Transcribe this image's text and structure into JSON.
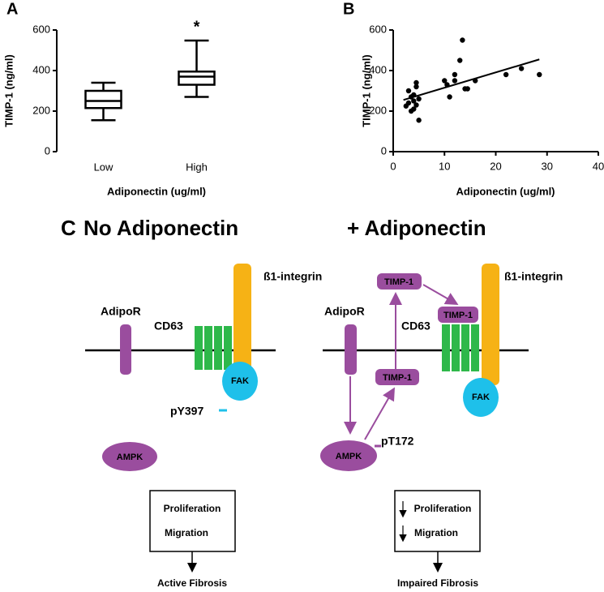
{
  "chart_data": [
    {
      "type": "box",
      "panel_label": "A",
      "ylabel": "TIMP-1 (ng/ml)",
      "xlabel": "Adiponectin (ug/ml)",
      "categories": [
        "Low",
        "High"
      ],
      "min": [
        155,
        270
      ],
      "q1": [
        215,
        330
      ],
      "median": [
        250,
        370
      ],
      "q3": [
        300,
        395
      ],
      "max": [
        340,
        548
      ],
      "significance": [
        null,
        "*"
      ],
      "color": "#000000",
      "ylim": [
        0,
        600
      ],
      "yticks": [
        0,
        200,
        400,
        600
      ]
    },
    {
      "type": "scatter",
      "panel_label": "B",
      "ylabel": "TIMP-1 (ng/ml)",
      "xlabel": "Adiponectin (ug/ml)",
      "x": [
        2.5,
        3,
        3.5,
        3.5,
        4,
        4,
        4.5,
        4.5,
        4.5,
        5,
        5,
        4,
        3,
        10,
        10.5,
        11,
        12,
        12,
        13,
        13.5,
        14,
        14.5,
        16,
        22,
        25,
        28.5
      ],
      "y": [
        225,
        300,
        200,
        270,
        250,
        210,
        340,
        320,
        230,
        260,
        155,
        280,
        240,
        350,
        330,
        270,
        380,
        350,
        450,
        550,
        310,
        310,
        350,
        380,
        410,
        380
      ],
      "trendline": {
        "x": [
          2,
          28.5
        ],
        "y": [
          255,
          455
        ]
      },
      "color": "#000000",
      "xlim": [
        0,
        40
      ],
      "xticks": [
        0,
        10,
        20,
        30,
        40
      ],
      "ylim": [
        0,
        600
      ],
      "yticks": [
        0,
        200,
        400,
        600
      ]
    }
  ],
  "diagram": {
    "panel_label": "C",
    "left": {
      "title": "No Adiponectin",
      "receptor": "AdipoR",
      "tetraspanin": "CD63",
      "integrin": "ß1-integrin",
      "fak": "FAK",
      "phospho": "pY397",
      "kinase": "AMPK",
      "outcomes": [
        "Proliferation",
        "Migration"
      ],
      "result": "Active Fibrosis"
    },
    "right": {
      "title": "+ Adiponectin",
      "receptor": "AdipoR",
      "tetraspanin": "CD63",
      "integrin": "ß1-integrin",
      "fak": "FAK",
      "phospho": "pT172",
      "kinase": "AMPK",
      "timp": [
        "TIMP-1",
        "TIMP-1",
        "TIMP-1"
      ],
      "outcomes": [
        "Proliferation",
        "Migration"
      ],
      "result": "Impaired Fibrosis"
    }
  }
}
